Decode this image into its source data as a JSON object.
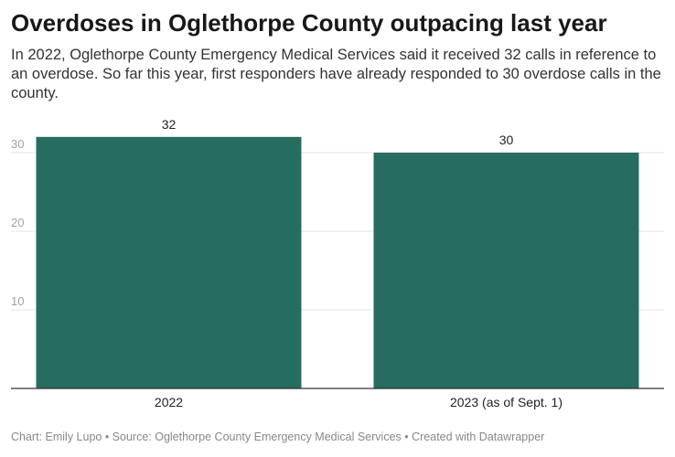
{
  "title": "Overdoses in Oglethorpe County outpacing last year",
  "subtitle": "In 2022, Oglethorpe County Emergency Medical Services said it received 32 calls in reference to an overdose. So far this year, first responders have already responded to 30 overdose calls in the county.",
  "footer": {
    "text": "Chart: Emily Lupo • Source: Oglethorpe County Emergency Medical Services • Created with Datawrapper"
  },
  "chart_data": {
    "type": "bar",
    "categories": [
      "2022",
      "2023 (as of Sept. 1)"
    ],
    "values": [
      32,
      30
    ],
    "data_labels": [
      "32",
      "30"
    ],
    "yticks": [
      10,
      20,
      30
    ],
    "ylim": [
      0,
      32
    ],
    "grid": true,
    "bar_color": "#266d5f",
    "title": "",
    "xlabel": "",
    "ylabel": ""
  }
}
